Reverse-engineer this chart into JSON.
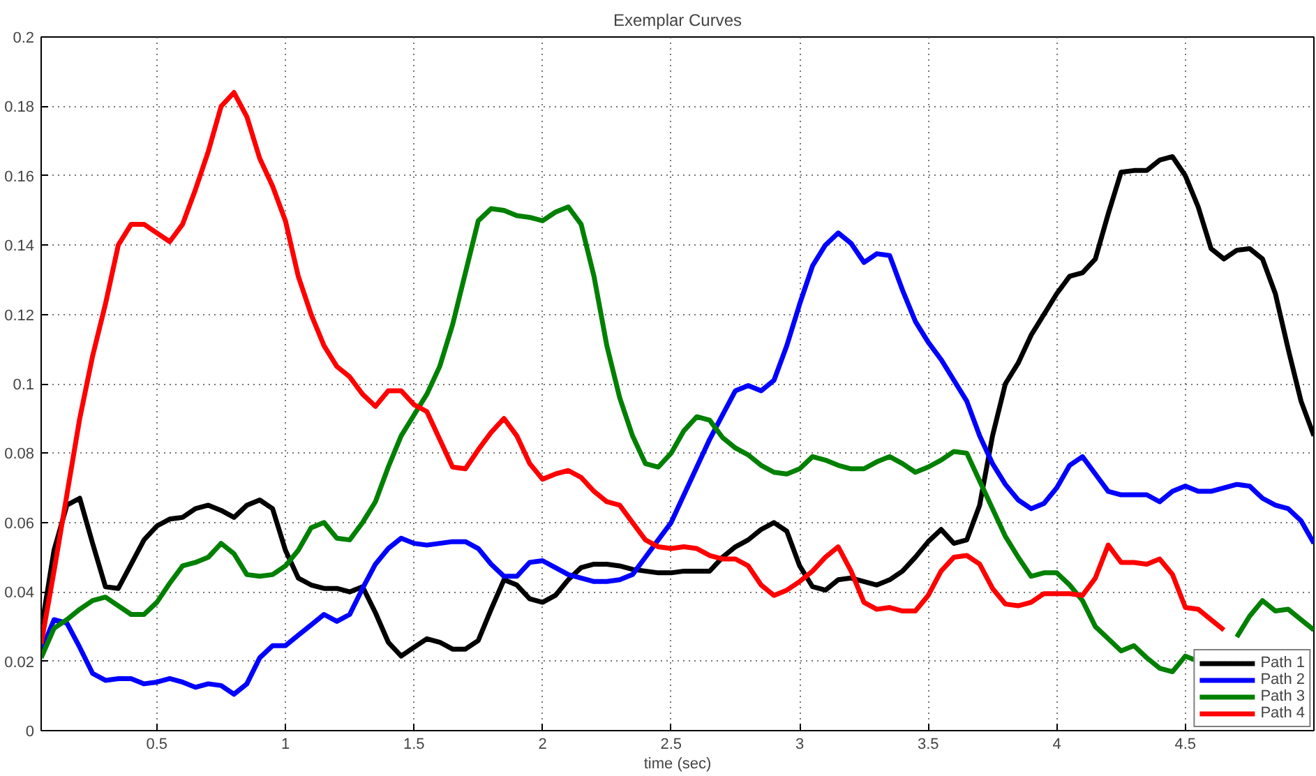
{
  "chart_data": {
    "type": "line",
    "title": "Exemplar Curves",
    "xlabel": "time (sec)",
    "x": [
      0.05,
      0.1,
      0.15,
      0.2,
      0.25,
      0.3,
      0.35,
      0.4,
      0.45,
      0.5,
      0.55,
      0.6,
      0.65,
      0.7,
      0.75,
      0.8,
      0.85,
      0.9,
      0.95,
      1.0,
      1.05,
      1.1,
      1.15,
      1.2,
      1.25,
      1.3,
      1.35,
      1.4,
      1.45,
      1.5,
      1.55,
      1.6,
      1.65,
      1.7,
      1.75,
      1.8,
      1.85,
      1.9,
      1.95,
      2.0,
      2.05,
      2.1,
      2.15,
      2.2,
      2.25,
      2.3,
      2.35,
      2.4,
      2.45,
      2.5,
      2.55,
      2.6,
      2.65,
      2.7,
      2.75,
      2.8,
      2.85,
      2.9,
      2.95,
      3.0,
      3.05,
      3.1,
      3.15,
      3.2,
      3.25,
      3.3,
      3.35,
      3.4,
      3.45,
      3.5,
      3.55,
      3.6,
      3.65,
      3.7,
      3.75,
      3.8,
      3.85,
      3.9,
      3.95,
      4.0,
      4.05,
      4.1,
      4.15,
      4.2,
      4.25,
      4.3,
      4.35,
      4.4,
      4.45,
      4.5,
      4.55,
      4.6,
      4.65,
      4.7,
      4.75,
      4.8,
      4.85,
      4.9,
      4.95,
      5.0
    ],
    "series": [
      {
        "name": "Path 1",
        "color": "#000000",
        "values": [
          0.029,
          0.052,
          0.065,
          0.067,
          0.054,
          0.0415,
          0.041,
          0.048,
          0.055,
          0.059,
          0.061,
          0.0615,
          0.064,
          0.065,
          0.0635,
          0.0615,
          0.065,
          0.0665,
          0.064,
          0.052,
          0.044,
          0.042,
          0.041,
          0.041,
          0.04,
          0.0415,
          0.034,
          0.0255,
          0.0215,
          0.024,
          0.0265,
          0.0255,
          0.0235,
          0.0235,
          0.026,
          0.035,
          0.0435,
          0.042,
          0.038,
          0.037,
          0.039,
          0.0435,
          0.047,
          0.048,
          0.048,
          0.0475,
          0.0465,
          0.046,
          0.0455,
          0.0455,
          0.046,
          0.046,
          0.046,
          0.05,
          0.053,
          0.055,
          0.058,
          0.06,
          0.0575,
          0.0475,
          0.0415,
          0.0405,
          0.0435,
          0.044,
          0.043,
          0.042,
          0.0435,
          0.046,
          0.05,
          0.0545,
          0.058,
          0.054,
          0.055,
          0.065,
          0.085,
          0.1,
          0.106,
          0.114,
          0.12,
          0.126,
          0.131,
          0.132,
          0.136,
          0.149,
          0.161,
          0.1615,
          0.1615,
          0.1645,
          0.1655,
          0.16,
          0.151,
          0.139,
          0.136,
          0.1385,
          0.139,
          0.136,
          0.126,
          0.11,
          0.095,
          0.085
        ]
      },
      {
        "name": "Path 2",
        "color": "#0000ff",
        "values": [
          0.023,
          0.032,
          0.031,
          0.024,
          0.0165,
          0.0145,
          0.015,
          0.015,
          0.0135,
          0.014,
          0.015,
          0.014,
          0.0125,
          0.0135,
          0.013,
          0.0105,
          0.0135,
          0.021,
          0.0245,
          0.0245,
          0.0275,
          0.0305,
          0.0335,
          0.0315,
          0.0335,
          0.041,
          0.048,
          0.0525,
          0.0555,
          0.054,
          0.0535,
          0.054,
          0.0545,
          0.0545,
          0.0525,
          0.048,
          0.0445,
          0.0445,
          0.0485,
          0.049,
          0.047,
          0.045,
          0.044,
          0.043,
          0.043,
          0.0435,
          0.045,
          0.05,
          0.055,
          0.06,
          0.068,
          0.076,
          0.084,
          0.091,
          0.098,
          0.0995,
          0.098,
          0.101,
          0.111,
          0.123,
          0.134,
          0.14,
          0.1435,
          0.1405,
          0.135,
          0.1375,
          0.137,
          0.127,
          0.118,
          0.112,
          0.107,
          0.101,
          0.095,
          0.085,
          0.077,
          0.071,
          0.0665,
          0.064,
          0.0655,
          0.07,
          0.0765,
          0.079,
          0.074,
          0.069,
          0.068,
          0.068,
          0.068,
          0.066,
          0.069,
          0.0705,
          0.069,
          0.069,
          0.07,
          0.071,
          0.0705,
          0.067,
          0.065,
          0.064,
          0.0605,
          0.054
        ]
      },
      {
        "name": "Path 3",
        "color": "#008000",
        "values": [
          0.021,
          0.0295,
          0.032,
          0.035,
          0.0375,
          0.0385,
          0.036,
          0.0335,
          0.0335,
          0.037,
          0.0425,
          0.0475,
          0.0485,
          0.05,
          0.054,
          0.051,
          0.045,
          0.0445,
          0.045,
          0.0475,
          0.052,
          0.0585,
          0.06,
          0.0555,
          0.055,
          0.06,
          0.066,
          0.076,
          0.085,
          0.091,
          0.097,
          0.105,
          0.117,
          0.132,
          0.147,
          0.1505,
          0.15,
          0.1485,
          0.148,
          0.147,
          0.1495,
          0.151,
          0.146,
          0.131,
          0.111,
          0.096,
          0.085,
          0.077,
          0.076,
          0.08,
          0.0865,
          0.0905,
          0.0895,
          0.0845,
          0.0815,
          0.0795,
          0.0765,
          0.0745,
          0.074,
          0.0755,
          0.079,
          0.078,
          0.0765,
          0.0755,
          0.0755,
          0.0775,
          0.079,
          0.077,
          0.0745,
          0.076,
          0.078,
          0.0805,
          0.08,
          0.072,
          0.064,
          0.056,
          0.05,
          0.0445,
          0.0455,
          0.0455,
          0.042,
          0.0375,
          0.03,
          0.0265,
          0.023,
          0.0245,
          0.021,
          0.018,
          0.017,
          0.0215,
          0.02,
          null,
          null,
          0.027,
          0.033,
          0.0375,
          0.0345,
          0.035,
          0.032,
          0.029
        ]
      },
      {
        "name": "Path 4",
        "color": "#ff0000",
        "values": [
          0.025,
          0.046,
          0.068,
          0.09,
          0.108,
          0.123,
          0.14,
          0.146,
          0.146,
          0.1435,
          0.141,
          0.146,
          0.156,
          0.167,
          0.18,
          0.184,
          0.177,
          0.165,
          0.157,
          0.147,
          0.131,
          0.12,
          0.111,
          0.105,
          0.102,
          0.097,
          0.0935,
          0.098,
          0.098,
          0.094,
          0.092,
          0.084,
          0.076,
          0.0755,
          0.081,
          0.086,
          0.09,
          0.085,
          0.077,
          0.0725,
          0.074,
          0.075,
          0.073,
          0.069,
          0.066,
          0.065,
          0.06,
          0.055,
          0.053,
          0.0525,
          0.053,
          0.0525,
          0.0505,
          0.0495,
          0.0495,
          0.0475,
          0.042,
          0.039,
          0.0405,
          0.043,
          0.046,
          0.05,
          0.053,
          0.046,
          0.037,
          0.035,
          0.0355,
          0.0345,
          0.0345,
          0.039,
          0.046,
          0.05,
          0.0505,
          0.048,
          0.041,
          0.0365,
          0.036,
          0.037,
          0.0395,
          0.0395,
          0.0395,
          0.039,
          0.044,
          0.0535,
          0.0485,
          0.0485,
          0.048,
          0.0495,
          0.045,
          0.0355,
          0.035,
          0.032,
          0.029,
          null,
          null,
          null,
          null,
          null,
          null,
          null
        ]
      }
    ],
    "xlim": [
      0.05,
      5
    ],
    "ylim": [
      0,
      0.2
    ],
    "xticks": [
      0.5,
      1,
      1.5,
      2,
      2.5,
      3,
      3.5,
      4,
      4.5
    ],
    "yticks": [
      0,
      0.02,
      0.04,
      0.06,
      0.08,
      0.1,
      0.12,
      0.14,
      0.16,
      0.18,
      0.2
    ],
    "grid": true,
    "legend": "bottom right",
    "line_style": "solid"
  }
}
